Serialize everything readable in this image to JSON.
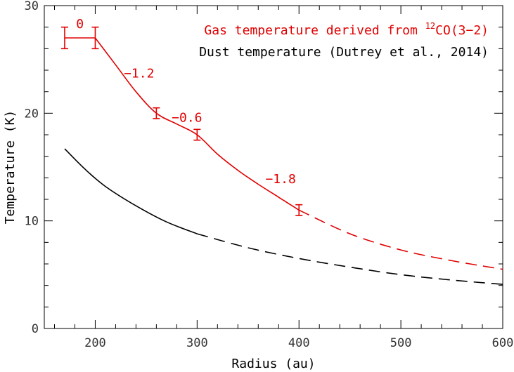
{
  "chart_data": {
    "type": "line",
    "xlabel": "Radius (au)",
    "ylabel": "Temperature (K)",
    "xlim": [
      150,
      600
    ],
    "ylim": [
      0,
      30
    ],
    "x_ticks": [
      "200",
      "300",
      "400",
      "500",
      "600"
    ],
    "y_ticks": [
      "0",
      "10",
      "20",
      "30"
    ],
    "grid": false,
    "legend_position": "top-right",
    "series": [
      {
        "name": "Gas temperature derived from ¹²CO(3−2)",
        "color": "#e00000",
        "solid": [
          [
            170,
            27
          ],
          [
            200,
            27
          ],
          [
            220,
            24.5
          ],
          [
            240,
            22.0
          ],
          [
            260,
            20.0
          ],
          [
            280,
            19.0
          ],
          [
            300,
            18.0
          ],
          [
            320,
            16.2
          ],
          [
            340,
            14.7
          ],
          [
            360,
            13.4
          ],
          [
            380,
            12.2
          ],
          [
            400,
            11.0
          ]
        ],
        "dashed": [
          [
            400,
            11.0
          ],
          [
            450,
            8.8
          ],
          [
            500,
            7.3
          ],
          [
            550,
            6.3
          ],
          [
            600,
            5.5
          ]
        ],
        "error_bars": [
          {
            "x": 170,
            "y": 27,
            "err": 1.0
          },
          {
            "x": 200,
            "y": 27,
            "err": 1.0
          },
          {
            "x": 260,
            "y": 20,
            "err": 0.5
          },
          {
            "x": 300,
            "y": 18,
            "err": 0.5
          },
          {
            "x": 400,
            "y": 11,
            "err": 0.5
          }
        ]
      },
      {
        "name": "Dust temperature (Dutrey et al., 2014)",
        "color": "#000000",
        "solid": [
          [
            170,
            16.7
          ],
          [
            190,
            14.8
          ],
          [
            210,
            13.2
          ],
          [
            240,
            11.4
          ],
          [
            270,
            9.9
          ],
          [
            300,
            8.8
          ]
        ],
        "dashed": [
          [
            300,
            8.8
          ],
          [
            350,
            7.5
          ],
          [
            400,
            6.5
          ],
          [
            450,
            5.7
          ],
          [
            500,
            5.0
          ],
          [
            550,
            4.5
          ],
          [
            600,
            4.1
          ]
        ]
      }
    ],
    "annotations": [
      {
        "text": "0",
        "x": 185,
        "y": 28.3
      },
      {
        "text": "−1.2",
        "x": 243,
        "y": 23.7
      },
      {
        "text": "−0.6",
        "x": 290,
        "y": 19.6
      },
      {
        "text": "−1.8",
        "x": 382,
        "y": 13.9
      }
    ]
  },
  "legend": {
    "gas_prefix": "Gas temperature derived from ",
    "gas_sup": "12",
    "gas_suffix": "CO(3−2)",
    "dust": "Dust temperature (Dutrey et al., 2014)"
  }
}
